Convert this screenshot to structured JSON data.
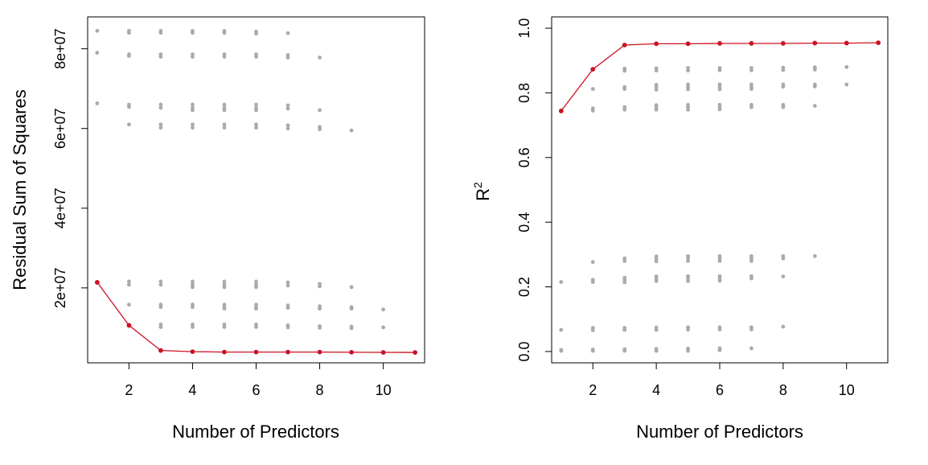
{
  "chart_data": [
    {
      "type": "scatter",
      "xlabel": "Number of Predictors",
      "ylabel": "Residual Sum of Squares",
      "xlim": [
        0.7,
        11.3
      ],
      "ylim": [
        1200000,
        88000000
      ],
      "x_ticks": [
        2,
        4,
        6,
        8,
        10
      ],
      "x_tick_labels": [
        "2",
        "4",
        "6",
        "8",
        "10"
      ],
      "y_ticks": [
        20000000,
        40000000,
        60000000,
        80000000
      ],
      "y_tick_labels": [
        "2e+07",
        "4e+07",
        "6e+07",
        "8e+07"
      ],
      "colors": {
        "all_models": "#aaaaaa",
        "best_model": "#cc1122"
      },
      "series": [
        {
          "kind": "all-models",
          "points": [
            [
              1,
              84500000
            ],
            [
              1,
              79000000
            ],
            [
              1,
              66300000
            ],
            [
              1,
              21400000
            ],
            [
              2,
              84500000
            ],
            [
              2,
              84000000
            ],
            [
              2,
              78600000
            ],
            [
              2,
              78200000
            ],
            [
              2,
              66000000
            ],
            [
              2,
              65400000
            ],
            [
              2,
              61000000
            ],
            [
              2,
              21600000
            ],
            [
              2,
              20800000
            ],
            [
              2,
              15800000
            ],
            [
              2,
              10600000
            ],
            [
              3,
              84500000
            ],
            [
              3,
              84000000
            ],
            [
              3,
              78600000
            ],
            [
              3,
              78000000
            ],
            [
              3,
              66000000
            ],
            [
              3,
              65200000
            ],
            [
              3,
              61000000
            ],
            [
              3,
              60200000
            ],
            [
              3,
              21600000
            ],
            [
              3,
              20800000
            ],
            [
              3,
              15800000
            ],
            [
              3,
              15200000
            ],
            [
              3,
              10800000
            ],
            [
              3,
              10200000
            ],
            [
              3,
              4300000
            ],
            [
              4,
              84500000
            ],
            [
              4,
              84000000
            ],
            [
              4,
              78600000
            ],
            [
              4,
              78000000
            ],
            [
              4,
              66000000
            ],
            [
              4,
              65200000
            ],
            [
              4,
              64600000
            ],
            [
              4,
              61000000
            ],
            [
              4,
              60200000
            ],
            [
              4,
              21600000
            ],
            [
              4,
              20800000
            ],
            [
              4,
              20200000
            ],
            [
              4,
              15800000
            ],
            [
              4,
              15200000
            ],
            [
              4,
              10800000
            ],
            [
              4,
              10200000
            ],
            [
              4,
              4000000
            ],
            [
              5,
              84500000
            ],
            [
              5,
              84000000
            ],
            [
              5,
              78600000
            ],
            [
              5,
              78000000
            ],
            [
              5,
              66000000
            ],
            [
              5,
              65200000
            ],
            [
              5,
              64600000
            ],
            [
              5,
              61000000
            ],
            [
              5,
              60200000
            ],
            [
              5,
              21600000
            ],
            [
              5,
              20800000
            ],
            [
              5,
              20200000
            ],
            [
              5,
              15800000
            ],
            [
              5,
              15200000
            ],
            [
              5,
              14800000
            ],
            [
              5,
              10800000
            ],
            [
              5,
              10200000
            ],
            [
              5,
              3900000
            ],
            [
              6,
              84300000
            ],
            [
              6,
              83800000
            ],
            [
              6,
              78600000
            ],
            [
              6,
              78000000
            ],
            [
              6,
              66000000
            ],
            [
              6,
              65200000
            ],
            [
              6,
              64600000
            ],
            [
              6,
              61000000
            ],
            [
              6,
              60200000
            ],
            [
              6,
              21600000
            ],
            [
              6,
              20800000
            ],
            [
              6,
              20200000
            ],
            [
              6,
              15800000
            ],
            [
              6,
              15200000
            ],
            [
              6,
              14800000
            ],
            [
              6,
              10800000
            ],
            [
              6,
              10200000
            ],
            [
              6,
              3900000
            ],
            [
              7,
              83900000
            ],
            [
              7,
              78400000
            ],
            [
              7,
              77800000
            ],
            [
              7,
              65800000
            ],
            [
              7,
              65000000
            ],
            [
              7,
              60800000
            ],
            [
              7,
              60000000
            ],
            [
              7,
              21400000
            ],
            [
              7,
              20600000
            ],
            [
              7,
              15600000
            ],
            [
              7,
              15000000
            ],
            [
              7,
              10600000
            ],
            [
              7,
              10100000
            ],
            [
              7,
              3900000
            ],
            [
              8,
              77800000
            ],
            [
              8,
              64600000
            ],
            [
              8,
              60400000
            ],
            [
              8,
              59800000
            ],
            [
              8,
              21000000
            ],
            [
              8,
              20400000
            ],
            [
              8,
              15400000
            ],
            [
              8,
              14800000
            ],
            [
              8,
              10400000
            ],
            [
              8,
              10000000
            ],
            [
              8,
              3900000
            ],
            [
              9,
              59500000
            ],
            [
              9,
              20200000
            ],
            [
              9,
              15200000
            ],
            [
              9,
              14800000
            ],
            [
              9,
              10300000
            ],
            [
              9,
              9900000
            ],
            [
              9,
              3900000
            ],
            [
              10,
              14600000
            ],
            [
              10,
              10100000
            ],
            [
              10,
              3800000
            ],
            [
              11,
              3800000
            ]
          ]
        },
        {
          "kind": "best-model",
          "points": [
            [
              1,
              21400000
            ],
            [
              2,
              10600000
            ],
            [
              3,
              4300000
            ],
            [
              4,
              4000000
            ],
            [
              5,
              3900000
            ],
            [
              6,
              3900000
            ],
            [
              7,
              3900000
            ],
            [
              8,
              3900000
            ],
            [
              9,
              3850000
            ],
            [
              10,
              3820000
            ],
            [
              11,
              3800000
            ]
          ]
        }
      ]
    },
    {
      "type": "scatter",
      "xlabel": "Number of Predictors",
      "ylabel": "R",
      "ylabel_superscript": "2",
      "xlim": [
        0.7,
        11.3
      ],
      "ylim": [
        -0.035,
        1.035
      ],
      "x_ticks": [
        2,
        4,
        6,
        8,
        10
      ],
      "x_tick_labels": [
        "2",
        "4",
        "6",
        "8",
        "10"
      ],
      "y_ticks": [
        0,
        0.2,
        0.4,
        0.6,
        0.8,
        1.0
      ],
      "y_tick_labels": [
        "0.0",
        "0.2",
        "0.4",
        "0.6",
        "0.8",
        "1.0"
      ],
      "colors": {
        "all_models": "#aaaaaa",
        "best_model": "#cc1122"
      },
      "series": [
        {
          "kind": "all-models",
          "points": [
            [
              1,
              0.744
            ],
            [
              1,
              0.215
            ],
            [
              1,
              0.067
            ],
            [
              1,
              0.005
            ],
            [
              1,
              0.002
            ],
            [
              2,
              0.873
            ],
            [
              2,
              0.812
            ],
            [
              2,
              0.752
            ],
            [
              2,
              0.745
            ],
            [
              2,
              0.277
            ],
            [
              2,
              0.222
            ],
            [
              2,
              0.215
            ],
            [
              2,
              0.073
            ],
            [
              2,
              0.066
            ],
            [
              2,
              0.006
            ],
            [
              2,
              0.002
            ],
            [
              3,
              0.948
            ],
            [
              3,
              0.875
            ],
            [
              3,
              0.868
            ],
            [
              3,
              0.818
            ],
            [
              3,
              0.812
            ],
            [
              3,
              0.756
            ],
            [
              3,
              0.748
            ],
            [
              3,
              0.288
            ],
            [
              3,
              0.28
            ],
            [
              3,
              0.228
            ],
            [
              3,
              0.221
            ],
            [
              3,
              0.214
            ],
            [
              3,
              0.073
            ],
            [
              3,
              0.067
            ],
            [
              3,
              0.007
            ],
            [
              3,
              0.002
            ],
            [
              4,
              0.952
            ],
            [
              4,
              0.876
            ],
            [
              4,
              0.869
            ],
            [
              4,
              0.825
            ],
            [
              4,
              0.818
            ],
            [
              4,
              0.81
            ],
            [
              4,
              0.762
            ],
            [
              4,
              0.755
            ],
            [
              4,
              0.748
            ],
            [
              4,
              0.294
            ],
            [
              4,
              0.287
            ],
            [
              4,
              0.279
            ],
            [
              4,
              0.232
            ],
            [
              4,
              0.225
            ],
            [
              4,
              0.218
            ],
            [
              4,
              0.074
            ],
            [
              4,
              0.067
            ],
            [
              4,
              0.008
            ],
            [
              4,
              0.002
            ],
            [
              5,
              0.952
            ],
            [
              5,
              0.877
            ],
            [
              5,
              0.869
            ],
            [
              5,
              0.826
            ],
            [
              5,
              0.819
            ],
            [
              5,
              0.811
            ],
            [
              5,
              0.763
            ],
            [
              5,
              0.756
            ],
            [
              5,
              0.748
            ],
            [
              5,
              0.295
            ],
            [
              5,
              0.288
            ],
            [
              5,
              0.28
            ],
            [
              5,
              0.233
            ],
            [
              5,
              0.226
            ],
            [
              5,
              0.218
            ],
            [
              5,
              0.075
            ],
            [
              5,
              0.068
            ],
            [
              5,
              0.009
            ],
            [
              5,
              0.002
            ],
            [
              6,
              0.953
            ],
            [
              6,
              0.877
            ],
            [
              6,
              0.87
            ],
            [
              6,
              0.826
            ],
            [
              6,
              0.819
            ],
            [
              6,
              0.811
            ],
            [
              6,
              0.763
            ],
            [
              6,
              0.756
            ],
            [
              6,
              0.749
            ],
            [
              6,
              0.295
            ],
            [
              6,
              0.288
            ],
            [
              6,
              0.28
            ],
            [
              6,
              0.233
            ],
            [
              6,
              0.226
            ],
            [
              6,
              0.219
            ],
            [
              6,
              0.075
            ],
            [
              6,
              0.068
            ],
            [
              6,
              0.01
            ],
            [
              6,
              0.004
            ],
            [
              7,
              0.953
            ],
            [
              7,
              0.877
            ],
            [
              7,
              0.87
            ],
            [
              7,
              0.826
            ],
            [
              7,
              0.819
            ],
            [
              7,
              0.812
            ],
            [
              7,
              0.763
            ],
            [
              7,
              0.756
            ],
            [
              7,
              0.295
            ],
            [
              7,
              0.288
            ],
            [
              7,
              0.28
            ],
            [
              7,
              0.233
            ],
            [
              7,
              0.226
            ],
            [
              7,
              0.075
            ],
            [
              7,
              0.068
            ],
            [
              7,
              0.01
            ],
            [
              8,
              0.953
            ],
            [
              8,
              0.878
            ],
            [
              8,
              0.871
            ],
            [
              8,
              0.826
            ],
            [
              8,
              0.819
            ],
            [
              8,
              0.763
            ],
            [
              8,
              0.756
            ],
            [
              8,
              0.295
            ],
            [
              8,
              0.288
            ],
            [
              8,
              0.232
            ],
            [
              8,
              0.077
            ],
            [
              9,
              0.954
            ],
            [
              9,
              0.879
            ],
            [
              9,
              0.872
            ],
            [
              9,
              0.826
            ],
            [
              9,
              0.82
            ],
            [
              9,
              0.76
            ],
            [
              9,
              0.295
            ],
            [
              10,
              0.954
            ],
            [
              10,
              0.88
            ],
            [
              10,
              0.826
            ],
            [
              11,
              0.955
            ]
          ]
        },
        {
          "kind": "best-model",
          "points": [
            [
              1,
              0.744
            ],
            [
              2,
              0.873
            ],
            [
              3,
              0.948
            ],
            [
              4,
              0.952
            ],
            [
              5,
              0.952
            ],
            [
              6,
              0.953
            ],
            [
              7,
              0.953
            ],
            [
              8,
              0.953
            ],
            [
              9,
              0.954
            ],
            [
              10,
              0.954
            ],
            [
              11,
              0.955
            ]
          ]
        }
      ]
    }
  ]
}
